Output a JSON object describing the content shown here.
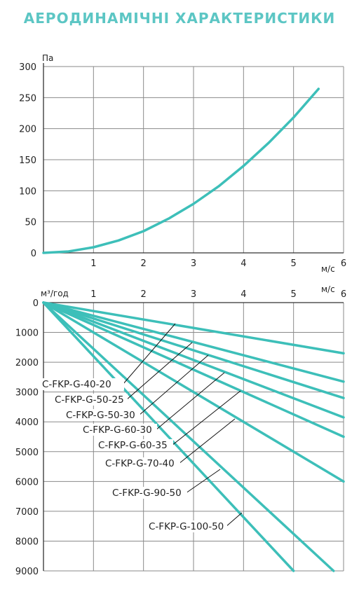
{
  "title": "АЕРОДИНАМІЧНІ ХАРАКТЕРИСТИКИ",
  "colors": {
    "title": "#5cc6c4",
    "curve": "#3dbfb9",
    "grid": "#8a8a8a",
    "text": "#222222"
  },
  "chart_data": [
    {
      "type": "line",
      "ylabel": "Па",
      "xlabel": "м/с",
      "xlim": [
        0,
        6
      ],
      "ylim": [
        0,
        300
      ],
      "x_ticks": [
        "1",
        "2",
        "3",
        "4",
        "5",
        "6"
      ],
      "y_ticks": [
        "0",
        "50",
        "100",
        "150",
        "200",
        "250",
        "300"
      ],
      "grid": true,
      "series": [
        {
          "x": [
            0,
            0.5,
            1,
            1.5,
            2,
            2.5,
            3,
            3.5,
            4,
            4.5,
            5,
            5.5
          ],
          "y": [
            0,
            2.2,
            9,
            20,
            35,
            55,
            79,
            107,
            140,
            177,
            218,
            264
          ]
        }
      ]
    },
    {
      "type": "line",
      "ylabel": "м³/год",
      "xlabel": "м/с",
      "xlim": [
        0,
        6
      ],
      "ylim": [
        0,
        9000
      ],
      "x_ticks": [
        "1",
        "2",
        "3",
        "4",
        "5",
        "6"
      ],
      "y_ticks": [
        "0",
        "1000",
        "2000",
        "3000",
        "4000",
        "5000",
        "6000",
        "7000",
        "8000",
        "9000"
      ],
      "grid": true,
      "series": [
        {
          "name": "C-FKP-G-40-20",
          "x": [
            0,
            6
          ],
          "y": [
            0,
            1700
          ]
        },
        {
          "name": "C-FKP-G-50-25",
          "x": [
            0,
            6
          ],
          "y": [
            0,
            2650
          ]
        },
        {
          "name": "C-FKP-G-50-30",
          "x": [
            0,
            6
          ],
          "y": [
            0,
            3200
          ]
        },
        {
          "name": "C-FKP-G-60-30",
          "x": [
            0,
            6
          ],
          "y": [
            0,
            3850
          ]
        },
        {
          "name": "C-FKP-G-60-35",
          "x": [
            0,
            6
          ],
          "y": [
            0,
            4500
          ]
        },
        {
          "name": "C-FKP-G-70-40",
          "x": [
            0,
            6
          ],
          "y": [
            0,
            6000
          ]
        },
        {
          "name": "C-FKP-G-90-50",
          "x": [
            0,
            5.8
          ],
          "y": [
            0,
            9000
          ]
        },
        {
          "name": "C-FKP-G-100-50",
          "x": [
            0,
            5
          ],
          "y": [
            0,
            9000
          ]
        }
      ]
    }
  ]
}
